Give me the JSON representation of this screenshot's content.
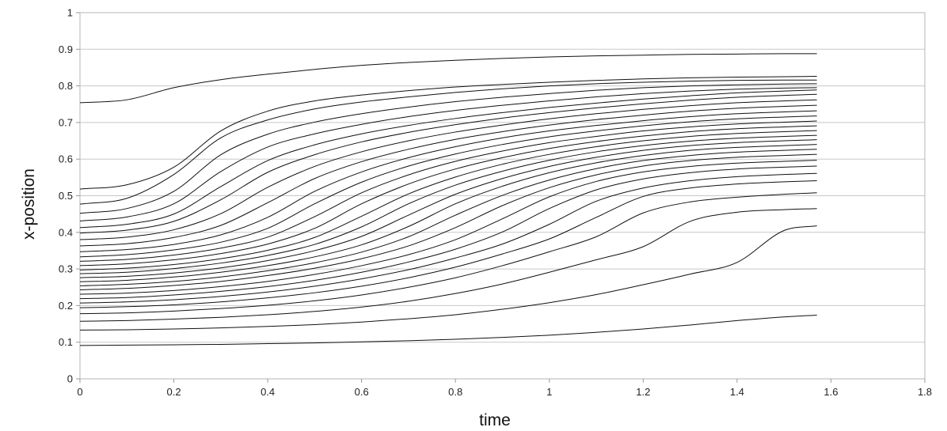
{
  "chart_data": {
    "type": "line",
    "title": "",
    "xlabel": "time",
    "ylabel": "x-position",
    "xlim": [
      0,
      1.8
    ],
    "ylim": [
      0,
      1
    ],
    "x_ticks": [
      "0",
      "0.2",
      "0.4",
      "0.6",
      "0.8",
      "1",
      "1.2",
      "1.4",
      "1.6",
      "1.8"
    ],
    "y_ticks": [
      "0",
      "0.1",
      "0.2",
      "0.3",
      "0.4",
      "0.5",
      "0.6",
      "0.7",
      "0.8",
      "0.9",
      "1"
    ],
    "grid": "horizontal",
    "legend": "none",
    "line_color": "#111111",
    "x": [
      0,
      0.1,
      0.2,
      0.3,
      0.4,
      0.5,
      0.6,
      0.7,
      0.8,
      0.9,
      1.0,
      1.1,
      1.2,
      1.3,
      1.4,
      1.5,
      1.57
    ],
    "series": [
      {
        "values": [
          0.091,
          0.092,
          0.093,
          0.094,
          0.096,
          0.098,
          0.101,
          0.104,
          0.108,
          0.113,
          0.119,
          0.127,
          0.136,
          0.147,
          0.159,
          0.169,
          0.174
        ]
      },
      {
        "values": [
          0.133,
          0.134,
          0.136,
          0.139,
          0.143,
          0.148,
          0.155,
          0.164,
          0.175,
          0.19,
          0.208,
          0.23,
          0.257,
          0.286,
          0.318,
          0.405,
          0.418
        ]
      },
      {
        "values": [
          0.157,
          0.159,
          0.163,
          0.168,
          0.175,
          0.184,
          0.196,
          0.212,
          0.233,
          0.259,
          0.291,
          0.325,
          0.361,
          0.43,
          0.455,
          0.462,
          0.465
        ]
      },
      {
        "values": [
          0.178,
          0.18,
          0.185,
          0.192,
          0.201,
          0.213,
          0.229,
          0.25,
          0.276,
          0.309,
          0.347,
          0.388,
          0.453,
          0.483,
          0.496,
          0.504,
          0.508
        ]
      },
      {
        "values": [
          0.194,
          0.197,
          0.202,
          0.21,
          0.221,
          0.235,
          0.253,
          0.276,
          0.305,
          0.341,
          0.382,
          0.441,
          0.498,
          0.521,
          0.532,
          0.538,
          0.541
        ]
      },
      {
        "values": [
          0.207,
          0.21,
          0.216,
          0.225,
          0.237,
          0.253,
          0.273,
          0.298,
          0.33,
          0.368,
          0.422,
          0.485,
          0.521,
          0.541,
          0.552,
          0.558,
          0.561
        ]
      },
      {
        "values": [
          0.219,
          0.222,
          0.229,
          0.239,
          0.252,
          0.269,
          0.291,
          0.319,
          0.354,
          0.401,
          0.465,
          0.516,
          0.546,
          0.563,
          0.573,
          0.578,
          0.581
        ]
      },
      {
        "values": [
          0.231,
          0.234,
          0.241,
          0.252,
          0.266,
          0.285,
          0.309,
          0.339,
          0.38,
          0.437,
          0.497,
          0.539,
          0.565,
          0.58,
          0.589,
          0.594,
          0.597
        ]
      },
      {
        "values": [
          0.243,
          0.247,
          0.255,
          0.266,
          0.282,
          0.302,
          0.328,
          0.363,
          0.413,
          0.473,
          0.522,
          0.557,
          0.581,
          0.596,
          0.605,
          0.61,
          0.613
        ]
      },
      {
        "values": [
          0.254,
          0.258,
          0.266,
          0.278,
          0.295,
          0.317,
          0.346,
          0.388,
          0.447,
          0.501,
          0.543,
          0.574,
          0.596,
          0.61,
          0.619,
          0.624,
          0.627
        ]
      },
      {
        "values": [
          0.265,
          0.269,
          0.278,
          0.291,
          0.309,
          0.333,
          0.366,
          0.416,
          0.478,
          0.526,
          0.563,
          0.59,
          0.61,
          0.624,
          0.632,
          0.637,
          0.64
        ]
      },
      {
        "values": [
          0.276,
          0.28,
          0.289,
          0.303,
          0.323,
          0.35,
          0.389,
          0.447,
          0.504,
          0.547,
          0.58,
          0.605,
          0.624,
          0.637,
          0.645,
          0.65,
          0.653
        ]
      },
      {
        "values": [
          0.287,
          0.291,
          0.301,
          0.316,
          0.337,
          0.367,
          0.415,
          0.478,
          0.529,
          0.567,
          0.597,
          0.62,
          0.637,
          0.649,
          0.657,
          0.662,
          0.665
        ]
      },
      {
        "values": [
          0.297,
          0.302,
          0.312,
          0.328,
          0.351,
          0.386,
          0.444,
          0.505,
          0.551,
          0.586,
          0.613,
          0.634,
          0.65,
          0.662,
          0.67,
          0.675,
          0.678
        ]
      },
      {
        "values": [
          0.309,
          0.314,
          0.325,
          0.342,
          0.368,
          0.411,
          0.478,
          0.532,
          0.573,
          0.604,
          0.629,
          0.648,
          0.663,
          0.675,
          0.683,
          0.688,
          0.691
        ]
      },
      {
        "values": [
          0.321,
          0.326,
          0.338,
          0.357,
          0.387,
          0.443,
          0.508,
          0.557,
          0.594,
          0.622,
          0.645,
          0.662,
          0.677,
          0.688,
          0.696,
          0.701,
          0.704
        ]
      },
      {
        "values": [
          0.333,
          0.339,
          0.352,
          0.373,
          0.411,
          0.478,
          0.537,
          0.581,
          0.614,
          0.64,
          0.661,
          0.677,
          0.691,
          0.702,
          0.71,
          0.715,
          0.718
        ]
      },
      {
        "values": [
          0.347,
          0.353,
          0.367,
          0.393,
          0.441,
          0.512,
          0.565,
          0.604,
          0.634,
          0.658,
          0.677,
          0.692,
          0.705,
          0.716,
          0.724,
          0.729,
          0.732
        ]
      },
      {
        "values": [
          0.363,
          0.369,
          0.386,
          0.419,
          0.481,
          0.547,
          0.593,
          0.627,
          0.654,
          0.675,
          0.693,
          0.708,
          0.72,
          0.731,
          0.739,
          0.744,
          0.747
        ]
      },
      {
        "values": [
          0.38,
          0.387,
          0.407,
          0.451,
          0.523,
          0.58,
          0.62,
          0.65,
          0.674,
          0.693,
          0.71,
          0.724,
          0.736,
          0.746,
          0.754,
          0.759,
          0.762
        ]
      },
      {
        "values": [
          0.398,
          0.406,
          0.43,
          0.489,
          0.564,
          0.612,
          0.647,
          0.673,
          0.694,
          0.712,
          0.727,
          0.74,
          0.751,
          0.761,
          0.769,
          0.774,
          0.777
        ]
      },
      {
        "values": [
          0.413,
          0.422,
          0.45,
          0.525,
          0.596,
          0.639,
          0.669,
          0.692,
          0.711,
          0.727,
          0.741,
          0.753,
          0.764,
          0.773,
          0.781,
          0.786,
          0.789
        ]
      },
      {
        "values": [
          0.431,
          0.442,
          0.478,
          0.566,
          0.633,
          0.669,
          0.695,
          0.716,
          0.733,
          0.747,
          0.759,
          0.77,
          0.779,
          0.786,
          0.791,
          0.794,
          0.795
        ]
      },
      {
        "values": [
          0.452,
          0.465,
          0.512,
          0.612,
          0.668,
          0.701,
          0.724,
          0.742,
          0.757,
          0.769,
          0.779,
          0.788,
          0.795,
          0.8,
          0.803,
          0.805,
          0.806
        ]
      },
      {
        "values": [
          0.477,
          0.493,
          0.558,
          0.658,
          0.707,
          0.737,
          0.756,
          0.77,
          0.782,
          0.792,
          0.8,
          0.806,
          0.81,
          0.813,
          0.815,
          0.816,
          0.816
        ]
      },
      {
        "values": [
          0.518,
          0.53,
          0.578,
          0.677,
          0.731,
          0.759,
          0.775,
          0.787,
          0.797,
          0.804,
          0.81,
          0.815,
          0.819,
          0.822,
          0.824,
          0.825,
          0.826
        ]
      },
      {
        "values": [
          0.754,
          0.762,
          0.795,
          0.817,
          0.832,
          0.845,
          0.856,
          0.864,
          0.87,
          0.875,
          0.879,
          0.882,
          0.884,
          0.886,
          0.887,
          0.888,
          0.888
        ]
      }
    ]
  }
}
